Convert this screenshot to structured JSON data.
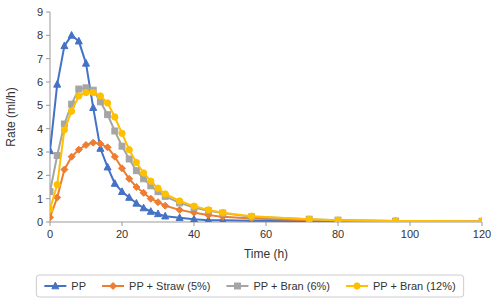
{
  "chart_data": {
    "type": "line",
    "xlabel": "Time (h)",
    "ylabel": "Rate (ml/h)",
    "x": [
      0,
      2,
      4,
      6,
      8,
      10,
      12,
      14,
      16,
      18,
      20,
      22,
      24,
      26,
      28,
      30,
      32,
      36,
      40,
      44,
      48,
      56,
      72,
      80,
      96,
      120
    ],
    "series": [
      {
        "name": "PP",
        "color": "#4472C4",
        "marker": "triangle",
        "values": [
          3.05,
          5.9,
          7.55,
          8.0,
          7.75,
          6.8,
          4.9,
          3.15,
          2.35,
          1.65,
          1.3,
          1.05,
          0.8,
          0.6,
          0.45,
          0.35,
          0.25,
          0.18,
          0.12,
          0.08,
          0.07,
          0.05,
          0.04,
          0.03,
          0.02,
          0.02
        ]
      },
      {
        "name": "PP + Straw (5%)",
        "color": "#ED7D31",
        "marker": "diamond",
        "values": [
          0.2,
          1.05,
          2.25,
          2.8,
          3.1,
          3.3,
          3.4,
          3.35,
          3.2,
          2.8,
          2.3,
          1.85,
          1.5,
          1.25,
          1.0,
          0.85,
          0.7,
          0.52,
          0.4,
          0.3,
          0.22,
          0.15,
          0.08,
          0.06,
          0.04,
          0.03
        ]
      },
      {
        "name": "PP + Bran (6%)",
        "color": "#A5A5A5",
        "marker": "square",
        "values": [
          1.3,
          2.85,
          4.2,
          5.05,
          5.7,
          5.75,
          5.65,
          5.15,
          4.6,
          3.9,
          3.25,
          2.7,
          2.2,
          1.85,
          1.55,
          1.3,
          1.1,
          0.82,
          0.62,
          0.48,
          0.38,
          0.22,
          0.12,
          0.08,
          0.04,
          0.03
        ]
      },
      {
        "name": "PP + Bran (12%)",
        "color": "#FFC000",
        "marker": "circle",
        "values": [
          0.55,
          1.6,
          3.95,
          4.75,
          5.4,
          5.55,
          5.55,
          5.4,
          5.1,
          4.5,
          3.8,
          3.1,
          2.55,
          2.1,
          1.75,
          1.45,
          1.2,
          0.9,
          0.68,
          0.52,
          0.4,
          0.25,
          0.12,
          0.08,
          0.04,
          0.03
        ]
      }
    ],
    "xlim": [
      0,
      120
    ],
    "ylim": [
      0,
      9
    ],
    "xticks": [
      0,
      20,
      40,
      60,
      80,
      100,
      120
    ],
    "yticks": [
      0,
      1,
      2,
      3,
      4,
      5,
      6,
      7,
      8,
      9
    ],
    "grid": false,
    "legend": "bottom"
  }
}
